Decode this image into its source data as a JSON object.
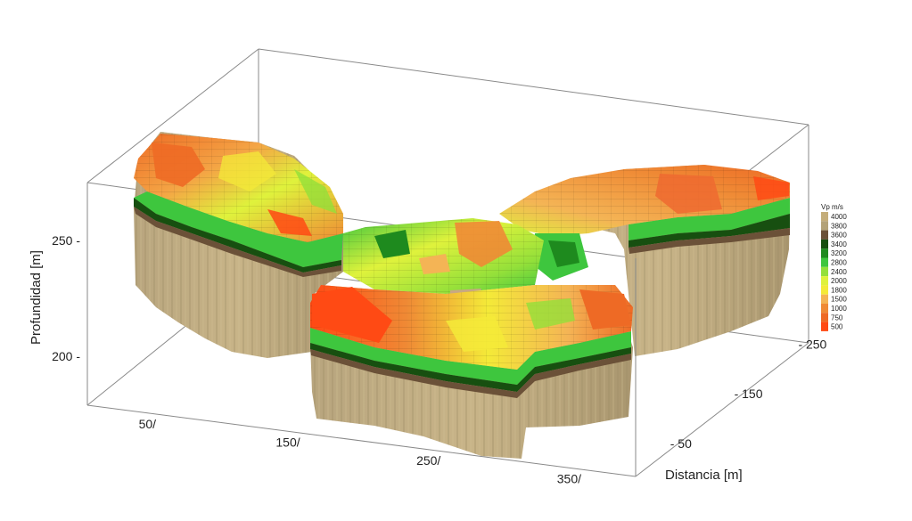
{
  "chart_data": {
    "type": "heatmap",
    "title": "",
    "y_axis": {
      "label": "Profundidad [m]",
      "ticks": [
        {
          "label": "250",
          "value": 250
        },
        {
          "label": "200",
          "value": 200
        }
      ]
    },
    "x_axis": {
      "label": "",
      "ticks": [
        {
          "label": "50/",
          "value": 50
        },
        {
          "label": "150/",
          "value": 150
        },
        {
          "label": "250/",
          "value": 250
        },
        {
          "label": "350/",
          "value": 350
        }
      ]
    },
    "z_axis": {
      "label": "Distancia [m]",
      "ticks": [
        {
          "label": "- 50",
          "value": 50
        },
        {
          "label": "- 150",
          "value": 150
        },
        {
          "label": "- 250",
          "value": 250
        }
      ]
    },
    "colorbar": {
      "title": "Vp m/s",
      "stops": [
        {
          "label": "4000",
          "value": 4000,
          "color": "#c4ad7a"
        },
        {
          "label": "3800",
          "value": 3800,
          "color": "#b3a278"
        },
        {
          "label": "3600",
          "value": 3600,
          "color": "#6b5138"
        },
        {
          "label": "3400",
          "value": 3400,
          "color": "#174f10"
        },
        {
          "label": "3200",
          "value": 3200,
          "color": "#1e8a1e"
        },
        {
          "label": "2800",
          "value": 2800,
          "color": "#3ec63e"
        },
        {
          "label": "2400",
          "value": 2400,
          "color": "#94e03a"
        },
        {
          "label": "2000",
          "value": 2000,
          "color": "#dff23c"
        },
        {
          "label": "1800",
          "value": 1800,
          "color": "#f4ea38"
        },
        {
          "label": "1500",
          "value": 1500,
          "color": "#f4b455"
        },
        {
          "label": "1000",
          "value": 1000,
          "color": "#ef8a35"
        },
        {
          "label": "750",
          "value": 750,
          "color": "#ee6a25"
        },
        {
          "label": "500",
          "value": 500,
          "color": "#ff4a14"
        }
      ]
    }
  }
}
